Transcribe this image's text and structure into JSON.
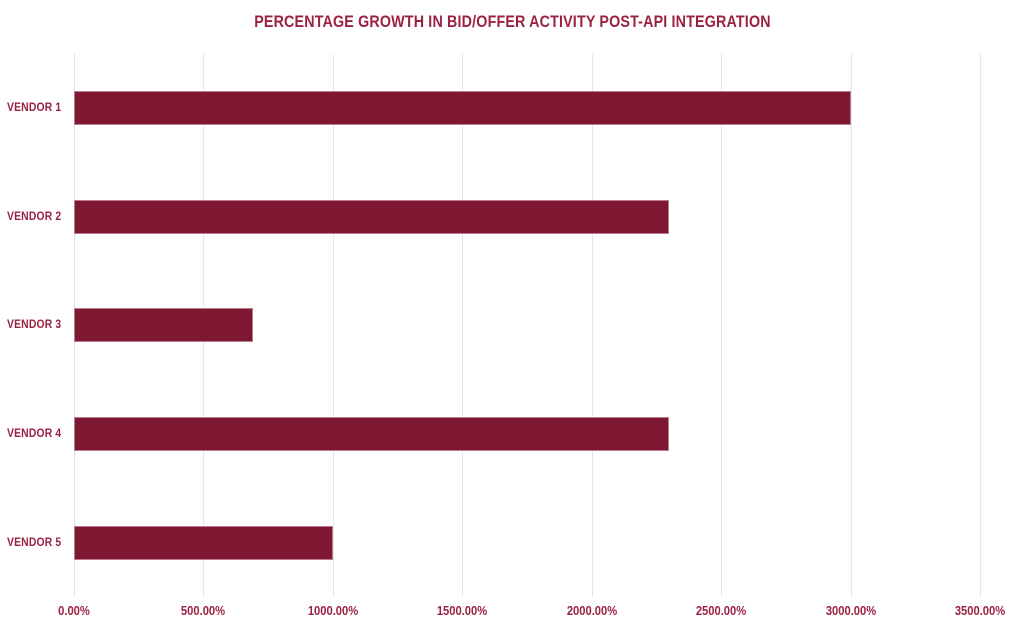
{
  "chart_data": {
    "type": "bar",
    "orientation": "horizontal",
    "title": "PERCENTAGE GROWTH IN BID/OFFER ACTIVITY POST-API INTEGRATION",
    "categories": [
      "VENDOR 1",
      "VENDOR 2",
      "VENDOR 3",
      "VENDOR 4",
      "VENDOR 5"
    ],
    "values": [
      3000,
      2300,
      690,
      2300,
      1000
    ],
    "value_suffix": "%",
    "xlabel": "",
    "ylabel": "",
    "xlim": [
      0,
      3500
    ],
    "x_tick_step": 500,
    "x_tick_labels": [
      "0.00%",
      "500.00%",
      "1000.00%",
      "1500.00%",
      "2000.00%",
      "2500.00%",
      "3000.00%",
      "3500.00%"
    ],
    "grid": "vertical-only",
    "legend": "none"
  },
  "colors": {
    "bar_fill": "#7D1732",
    "bar_border": "rgba(255,255,255,0.45)",
    "text": "#9B2143",
    "gridline": "#E7E7E7",
    "zero_line": "#E0E0E0",
    "background": "#FFFFFF"
  }
}
